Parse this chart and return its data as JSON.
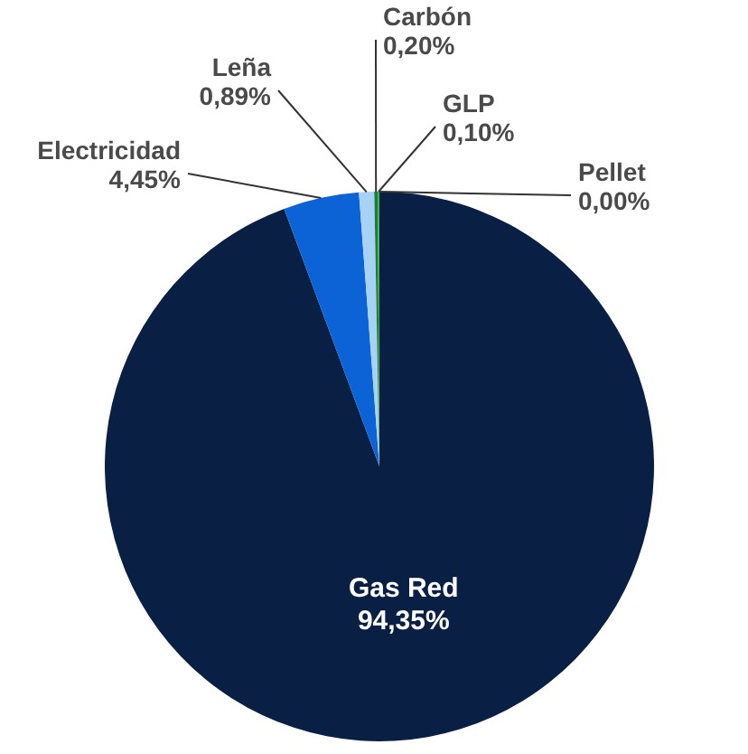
{
  "chart_data": {
    "type": "pie",
    "categories": [
      "Gas Red",
      "Electricidad",
      "Leña",
      "Carbón",
      "GLP",
      "Pellet"
    ],
    "values": [
      94.35,
      4.45,
      0.89,
      0.2,
      0.1,
      0
    ],
    "colors": [
      "#0a1f44",
      "#0b63d6",
      "#a8d2f5",
      "#1f7a3a",
      "#2fb34a",
      "#9bd84c"
    ],
    "value_labels": [
      "94,35%",
      "4,45%",
      "0,89%",
      "0,20%",
      "0,10%",
      "0,00%"
    ]
  }
}
